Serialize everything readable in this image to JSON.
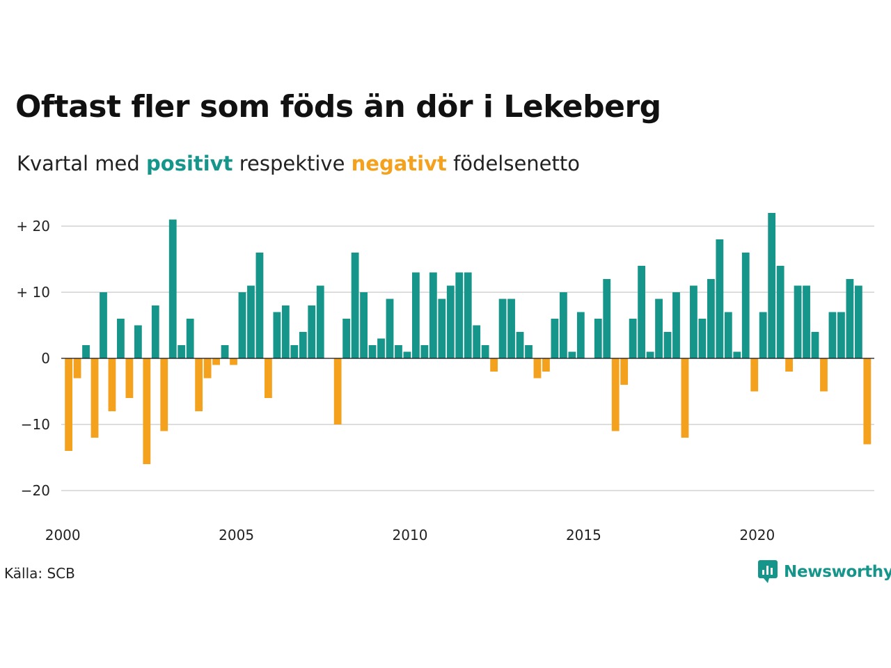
{
  "title": "Oftast fler som föds än dör i Lekeberg",
  "subtitle": {
    "part1": "Kvartal med ",
    "positive": "positivt",
    "part2": " respektive ",
    "negative": "negativt",
    "part3": " födelsenetto"
  },
  "source": "Källa: SCB",
  "brand": {
    "name": "Newsworthy",
    "icon": "newsworthy-logo-icon"
  },
  "colors": {
    "positive": "#16958a",
    "negative": "#f4a11e",
    "grid": "#dddddd",
    "axis": "#111111"
  },
  "chart_data": {
    "type": "bar",
    "title": "Oftast fler som föds än dör i Lekeberg",
    "xlabel": "",
    "ylabel": "",
    "ylim": [
      -24,
      24
    ],
    "grid": true,
    "y_ticks": [
      {
        "value": 20,
        "label": "+ 20"
      },
      {
        "value": 10,
        "label": "+ 10"
      },
      {
        "value": 0,
        "label": "0"
      },
      {
        "value": -10,
        "label": "−10"
      },
      {
        "value": -20,
        "label": "−20"
      }
    ],
    "x_ticks": [
      {
        "value": 2000,
        "label": "2000"
      },
      {
        "value": 2005,
        "label": "2005"
      },
      {
        "value": 2010,
        "label": "2010"
      },
      {
        "value": 2015,
        "label": "2015"
      },
      {
        "value": 2020,
        "label": "2020"
      }
    ],
    "start": "2000 Q1",
    "values": [
      -14,
      -3,
      2,
      -12,
      10,
      -8,
      6,
      -6,
      5,
      -16,
      8,
      -11,
      21,
      2,
      6,
      -8,
      -3,
      -1,
      2,
      -1,
      10,
      11,
      16,
      -6,
      7,
      8,
      2,
      4,
      8,
      11,
      0,
      -10,
      6,
      16,
      10,
      2,
      3,
      9,
      2,
      1,
      13,
      2,
      13,
      9,
      11,
      13,
      13,
      5,
      2,
      -2,
      9,
      9,
      4,
      2,
      -3,
      -2,
      6,
      10,
      1,
      7,
      0,
      6,
      12,
      -11,
      -4,
      6,
      14,
      1,
      9,
      4,
      10,
      -12,
      11,
      6,
      12,
      18,
      7,
      1,
      16,
      -5,
      7,
      22,
      14,
      -2,
      11,
      11,
      4,
      -5,
      7,
      7,
      12,
      11,
      -13
    ]
  }
}
